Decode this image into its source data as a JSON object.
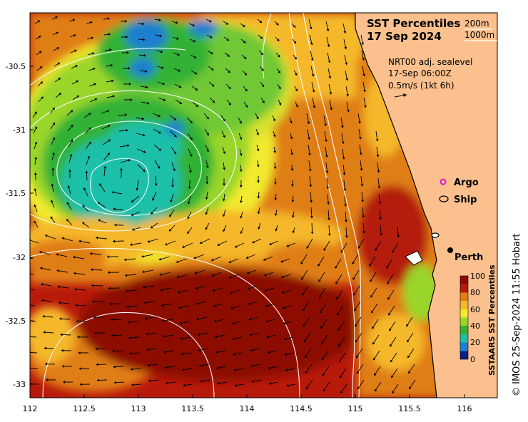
{
  "title": {
    "line1": "SST Percentiles",
    "line2": "17 Sep 2024"
  },
  "depth_legend": {
    "a": "200m",
    "b": "1000m"
  },
  "current_info": {
    "line1": "NRT00 adj. sealevel",
    "line2": "17-Sep 06:00Z",
    "line3": "0.5m/s (1kt 6h)"
  },
  "markers": {
    "argo": "Argo",
    "ship": "Ship",
    "city": "Perth"
  },
  "colorbar": {
    "title": "SSTAARS SST Percentiles",
    "ticks": [
      "0",
      "20",
      "40",
      "60",
      "80",
      "100"
    ],
    "colors": [
      "#0b1e8c",
      "#1f7fd0",
      "#1fbfa8",
      "#33b235",
      "#9ad52a",
      "#f2ea2d",
      "#f5b82a",
      "#e07e16",
      "#b41c0a",
      "#8c0a06"
    ]
  },
  "credit": "© IMOS 25-Sep-2024 11:55 Hobart",
  "axes": {
    "lat_ticks": [
      "-30.5",
      "-31",
      "-31.5",
      "-32",
      "-32.5",
      "-33"
    ],
    "lon_ticks": [
      "112",
      "112.5",
      "113",
      "113.5",
      "114",
      "114.5",
      "115",
      "115.5",
      "116"
    ]
  },
  "colors": {
    "land": "#fbc08d",
    "ocean_base": "#b81a0a"
  }
}
